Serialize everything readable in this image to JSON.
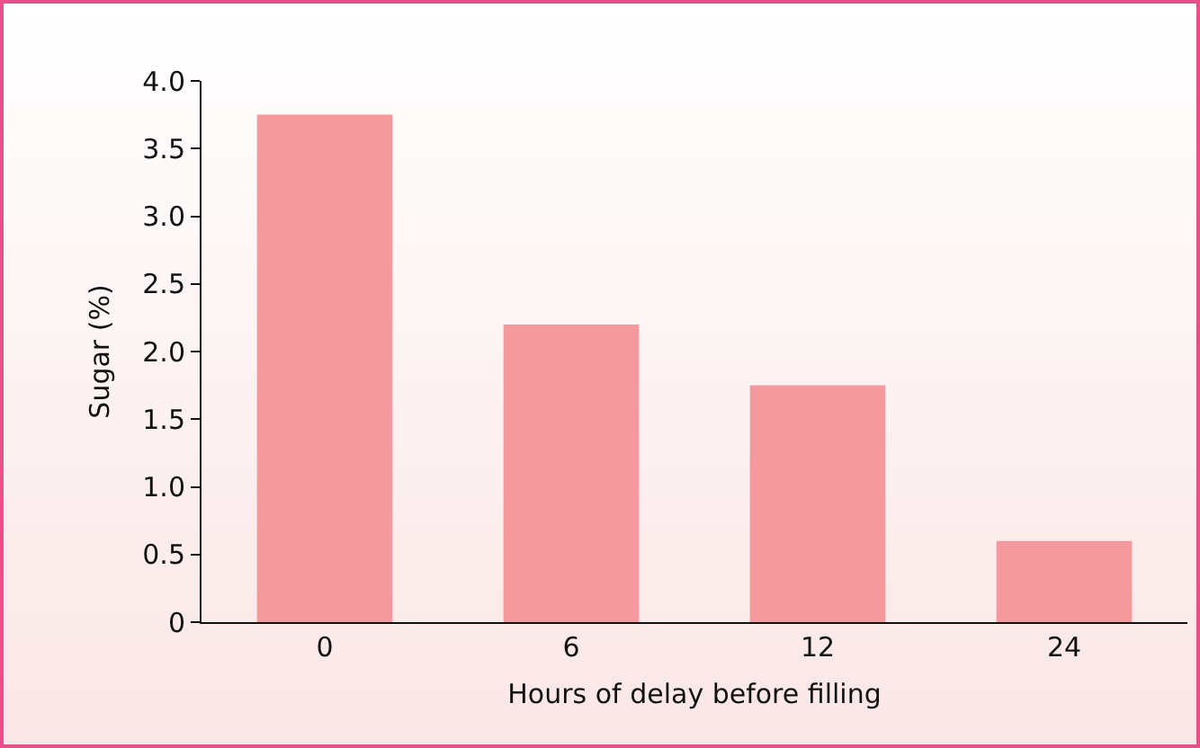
{
  "chart_data": {
    "type": "bar",
    "xlabel": "Hours of delay before filling",
    "ylabel": "Sugar (%)",
    "categories": [
      "0",
      "6",
      "12",
      "24"
    ],
    "values": [
      3.75,
      2.2,
      1.75,
      0.6
    ],
    "color": "#f4999e",
    "ylim": [
      0,
      4
    ],
    "yticks": [
      {
        "value": 0,
        "label": "0"
      },
      {
        "value": 0.5,
        "label": "0.5"
      },
      {
        "value": 1,
        "label": "1.0"
      },
      {
        "value": 1.5,
        "label": "1.5"
      },
      {
        "value": 2,
        "label": "2.0"
      },
      {
        "value": 2.5,
        "label": "2.5"
      },
      {
        "value": 3,
        "label": "3.0"
      },
      {
        "value": 3.5,
        "label": "3.5"
      },
      {
        "value": 4,
        "label": "4.0"
      }
    ],
    "grid": false
  }
}
